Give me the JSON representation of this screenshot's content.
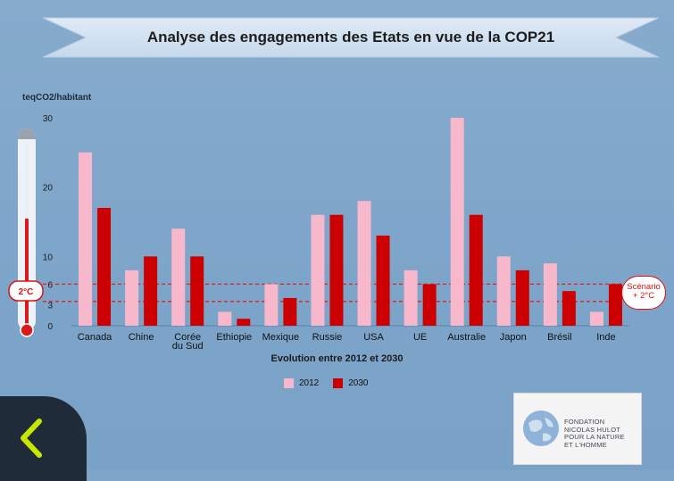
{
  "title": "Analyse des engagements des Etats en vue de la COP21",
  "unit_label": "teqCO2/habitant",
  "thermometer_label": "2°C",
  "scenario_label": "Scénario\n+ 2°C",
  "logo_text": "FONDATION\nNICOLAS HULOT\nPOUR LA NATURE\nET L'HOMME",
  "colors": {
    "series_2012": "#f7b8cc",
    "series_2030": "#cc0000",
    "threshold": "#e02020",
    "background": "#7fa6c9"
  },
  "chart_data": {
    "type": "bar",
    "title": "Analyse des engagements des Etats en vue de la COP21",
    "xlabel": "Evolution entre 2012 et 2030",
    "ylabel": "teqCO2/habitant",
    "ylim": [
      0,
      30
    ],
    "yticks": [
      0,
      3,
      6,
      10,
      20,
      30
    ],
    "categories": [
      "Canada",
      "Chine",
      "Corée du Sud",
      "Ethiopie",
      "Mexique",
      "Russie",
      "USA",
      "UE",
      "Australie",
      "Japon",
      "Brésil",
      "Inde"
    ],
    "category_labels": [
      [
        "Canada"
      ],
      [
        "Chine"
      ],
      [
        "Corée",
        "du Sud"
      ],
      [
        "Ethiopie"
      ],
      [
        "Mexique"
      ],
      [
        "Russie"
      ],
      [
        "USA"
      ],
      [
        "UE"
      ],
      [
        "Australie"
      ],
      [
        "Japon"
      ],
      [
        "Brésil"
      ],
      [
        "Inde"
      ]
    ],
    "series": [
      {
        "name": "2012",
        "values": [
          25,
          8,
          14,
          2,
          6,
          16,
          18,
          8,
          30,
          10,
          9,
          2
        ]
      },
      {
        "name": "2030",
        "values": [
          17,
          10,
          10,
          1,
          4,
          16,
          13,
          6,
          16,
          8,
          5,
          6
        ]
      }
    ],
    "threshold_lines": [
      3.5,
      6
    ],
    "legend": "bottom-center",
    "grid": false
  }
}
